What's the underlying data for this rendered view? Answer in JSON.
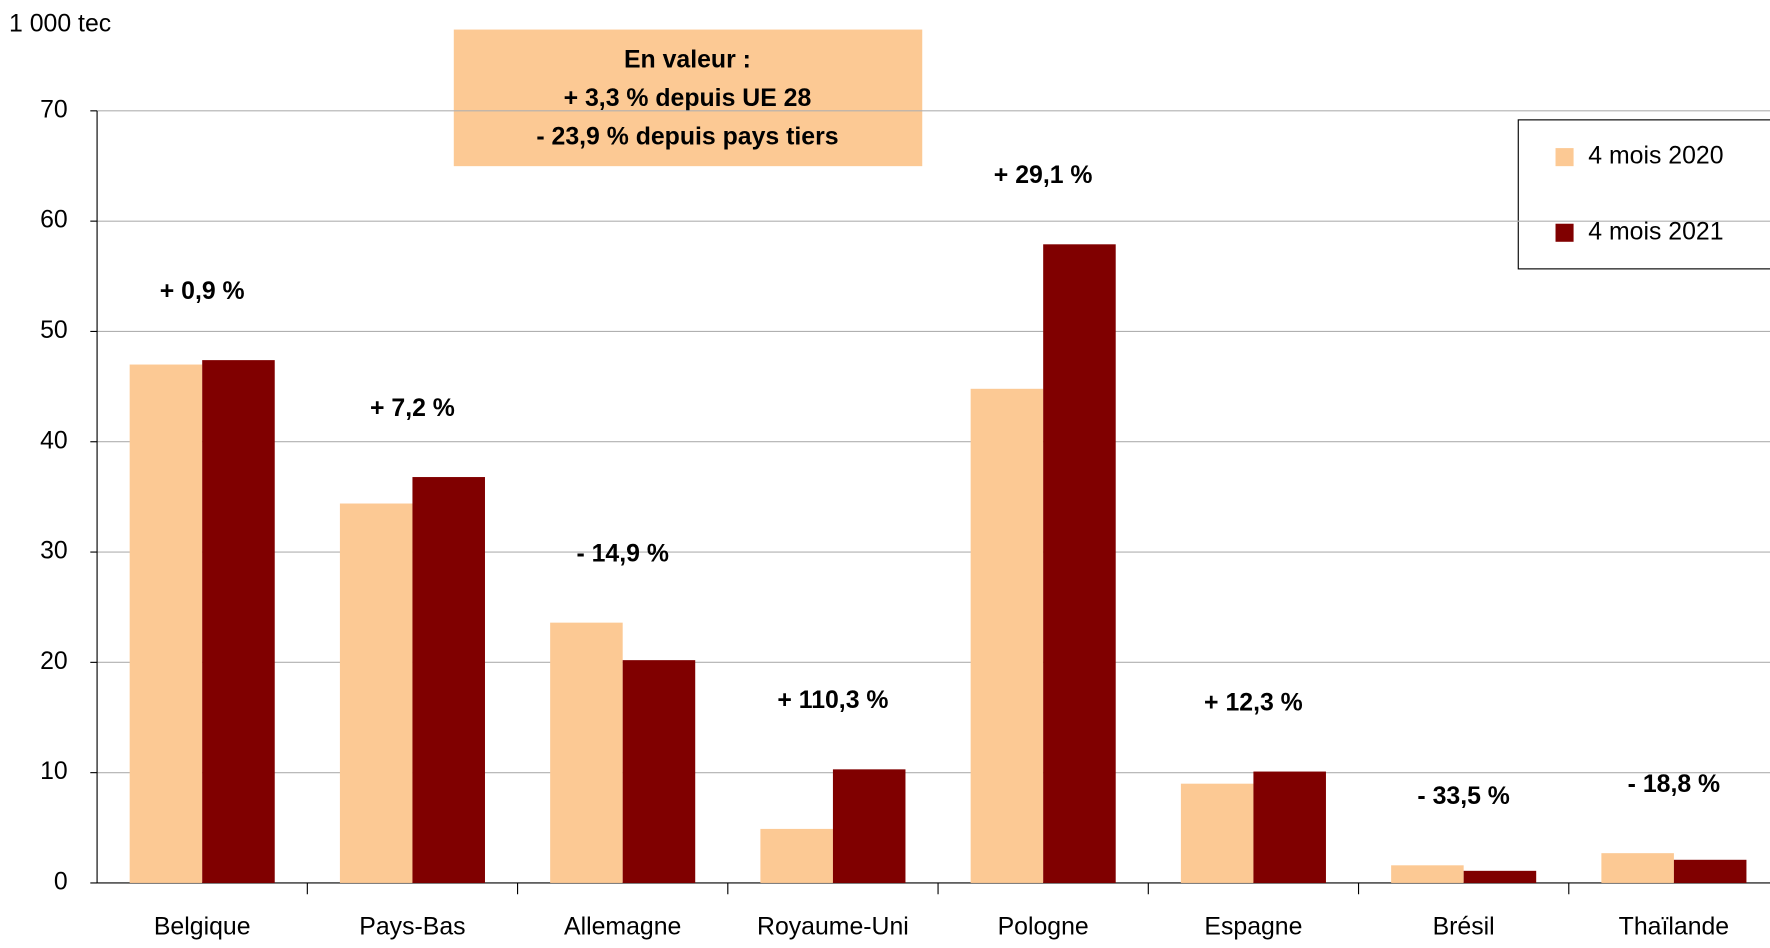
{
  "chart_data": {
    "type": "bar",
    "y_axis_label": "1 000 tec",
    "annotation_lines": [
      "En valeur :",
      "+ 3,3 % depuis UE 28",
      "- 23,9 % depuis pays tiers"
    ],
    "categories": [
      "Belgique",
      "Pays-Bas",
      "Allemagne",
      "Royaume-Uni",
      "Pologne",
      "Espagne",
      "Brésil",
      "Thaïlande"
    ],
    "change_labels": [
      "+ 0,9 %",
      "+ 7,2 %",
      "- 14,9 %",
      "+ 110,3 %",
      "+ 29,1 %",
      "+ 12,3 %",
      "- 33,5 %",
      "- 18,8 %"
    ],
    "series": [
      {
        "name": "4 mois 2020",
        "color": "#fcc994",
        "values": [
          47.0,
          34.4,
          23.6,
          4.9,
          44.8,
          9.0,
          1.6,
          2.7
        ]
      },
      {
        "name": "4 mois 2021",
        "color": "#800000",
        "values": [
          47.4,
          36.8,
          20.2,
          10.3,
          57.9,
          10.1,
          1.1,
          2.1
        ]
      }
    ],
    "ylim": [
      0,
      70
    ],
    "yticks": [
      0,
      10,
      20,
      30,
      40,
      50,
      60,
      70
    ],
    "grid": true,
    "legend": "upper right"
  }
}
